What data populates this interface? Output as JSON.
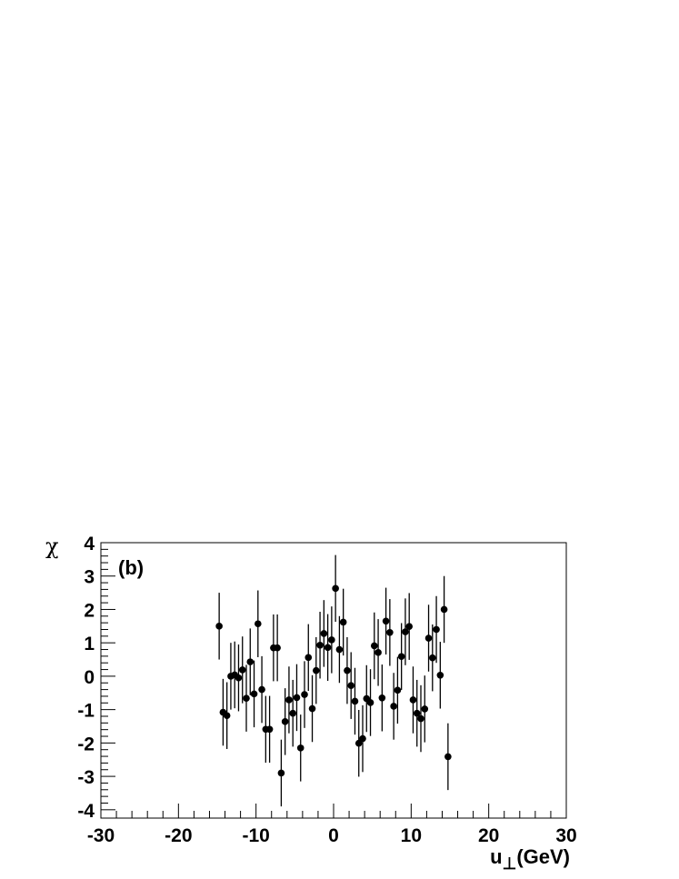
{
  "chart_data": {
    "type": "scatter",
    "panel_label": "(b)",
    "xlabel_main": "u",
    "xlabel_sub": "⊥",
    "xlabel_unit": "(GeV)",
    "ylabel": "χ",
    "xlim": [
      -30,
      30
    ],
    "ylim": [
      -4.25,
      4
    ],
    "xticks": [
      -30,
      -20,
      -10,
      0,
      10,
      20,
      30
    ],
    "xtick_labels": [
      "-30",
      "-20",
      "-10",
      "0",
      "10",
      "20",
      "30"
    ],
    "yticks": [
      -4,
      -3,
      -2,
      -1,
      0,
      1,
      2,
      3,
      4
    ],
    "ytick_labels": [
      "-4",
      "-3",
      "-2",
      "-1",
      "0",
      "1",
      "2",
      "3",
      "4"
    ],
    "grid": false,
    "marker_color": "#000000",
    "x_start": -14.75,
    "x_step": 0.5,
    "y": [
      1.5,
      -1.08,
      -1.18,
      0.0,
      0.04,
      -0.05,
      0.19,
      -0.66,
      0.43,
      -0.53,
      1.57,
      -0.4,
      -1.59,
      -1.59,
      0.85,
      0.85,
      -2.9,
      -1.36,
      -0.71,
      -1.11,
      -0.64,
      -2.15,
      -0.55,
      0.56,
      -0.97,
      0.17,
      0.93,
      1.28,
      0.86,
      1.09,
      2.63,
      0.8,
      1.62,
      0.17,
      -0.28,
      -0.75,
      -2.01,
      -1.87,
      -0.67,
      -0.79,
      0.91,
      0.71,
      -0.65,
      1.65,
      1.31,
      -0.9,
      -0.42,
      0.59,
      1.33,
      1.49,
      -0.71,
      -1.11,
      -1.27,
      -0.98,
      1.14,
      0.55,
      1.4,
      0.03,
      2.0,
      -2.41
    ],
    "y_error": 1.0
  }
}
